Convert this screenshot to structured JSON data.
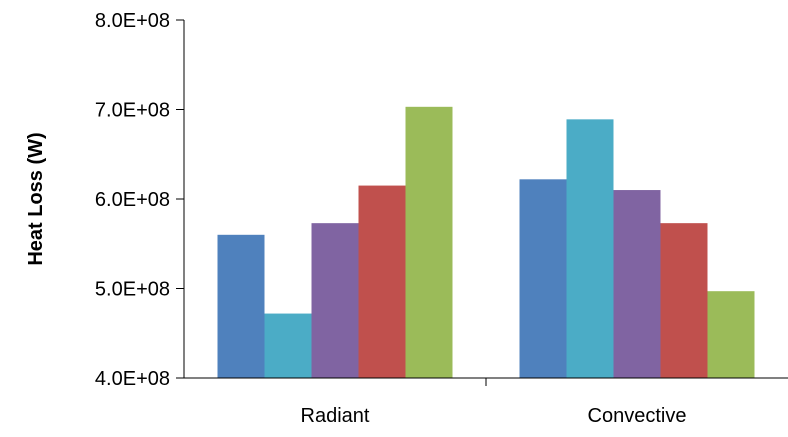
{
  "chart_data": {
    "type": "bar",
    "categories": [
      "Radiant",
      "Convective"
    ],
    "series": [
      {
        "color": "#4F81BD",
        "values": [
          560000000.0,
          622000000.0
        ]
      },
      {
        "color": "#4BACC6",
        "values": [
          472000000.0,
          689000000.0
        ]
      },
      {
        "color": "#8064A2",
        "values": [
          573000000.0,
          610000000.0
        ]
      },
      {
        "color": "#C0504D",
        "values": [
          615000000.0,
          573000000.0
        ]
      },
      {
        "color": "#9BBB59",
        "values": [
          703000000.0,
          497000000.0
        ]
      }
    ],
    "title": "",
    "xlabel": "",
    "ylabel": "Heat Loss (W)",
    "ylim": [
      400000000.0,
      800000000.0
    ],
    "yticks": [
      400000000.0,
      500000000.0,
      600000000.0,
      700000000.0,
      800000000.0
    ],
    "ytick_labels": [
      "4.0E+08",
      "5.0E+08",
      "6.0E+08",
      "7.0E+08",
      "8.0E+08"
    ],
    "grid": false,
    "legend": "none"
  }
}
